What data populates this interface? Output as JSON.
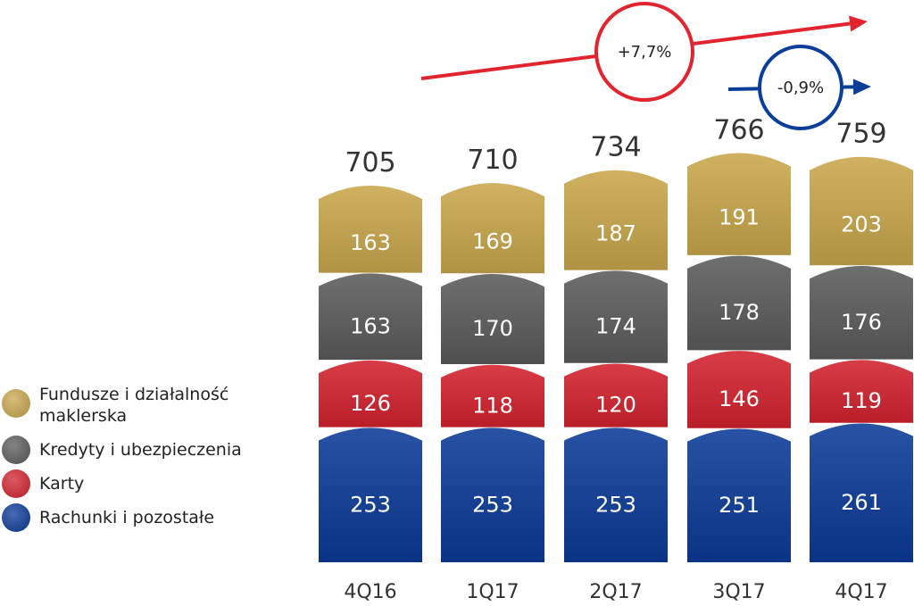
{
  "chart_data": {
    "type": "bar",
    "stacked": true,
    "categories": [
      "4Q16",
      "1Q17",
      "2Q17",
      "3Q17",
      "4Q17"
    ],
    "totals": [
      705,
      710,
      734,
      766,
      759
    ],
    "series": [
      {
        "name": "Rachunki i pozostałe",
        "color": "#0b3a97",
        "values": [
          253,
          253,
          253,
          251,
          261
        ]
      },
      {
        "name": "Karty",
        "color": "#d3222e",
        "values": [
          126,
          118,
          120,
          146,
          119
        ]
      },
      {
        "name": "Kredyty i ubezpieczenia",
        "color": "#5b5b5b",
        "values": [
          163,
          170,
          174,
          178,
          176
        ]
      },
      {
        "name": "Fundusze i działalność maklerska",
        "color": "#c8a64c",
        "values": [
          163,
          169,
          187,
          191,
          203
        ]
      }
    ],
    "annotations": [
      {
        "label": "+7,7%",
        "color": "#e2242f",
        "from": "4Q16",
        "to": "4Q17"
      },
      {
        "label": "-0,9%",
        "color": "#0b3d9a",
        "from": "3Q17",
        "to": "4Q17"
      }
    ],
    "ylim": [
      0,
      800
    ],
    "grid": false,
    "legend": "left"
  }
}
